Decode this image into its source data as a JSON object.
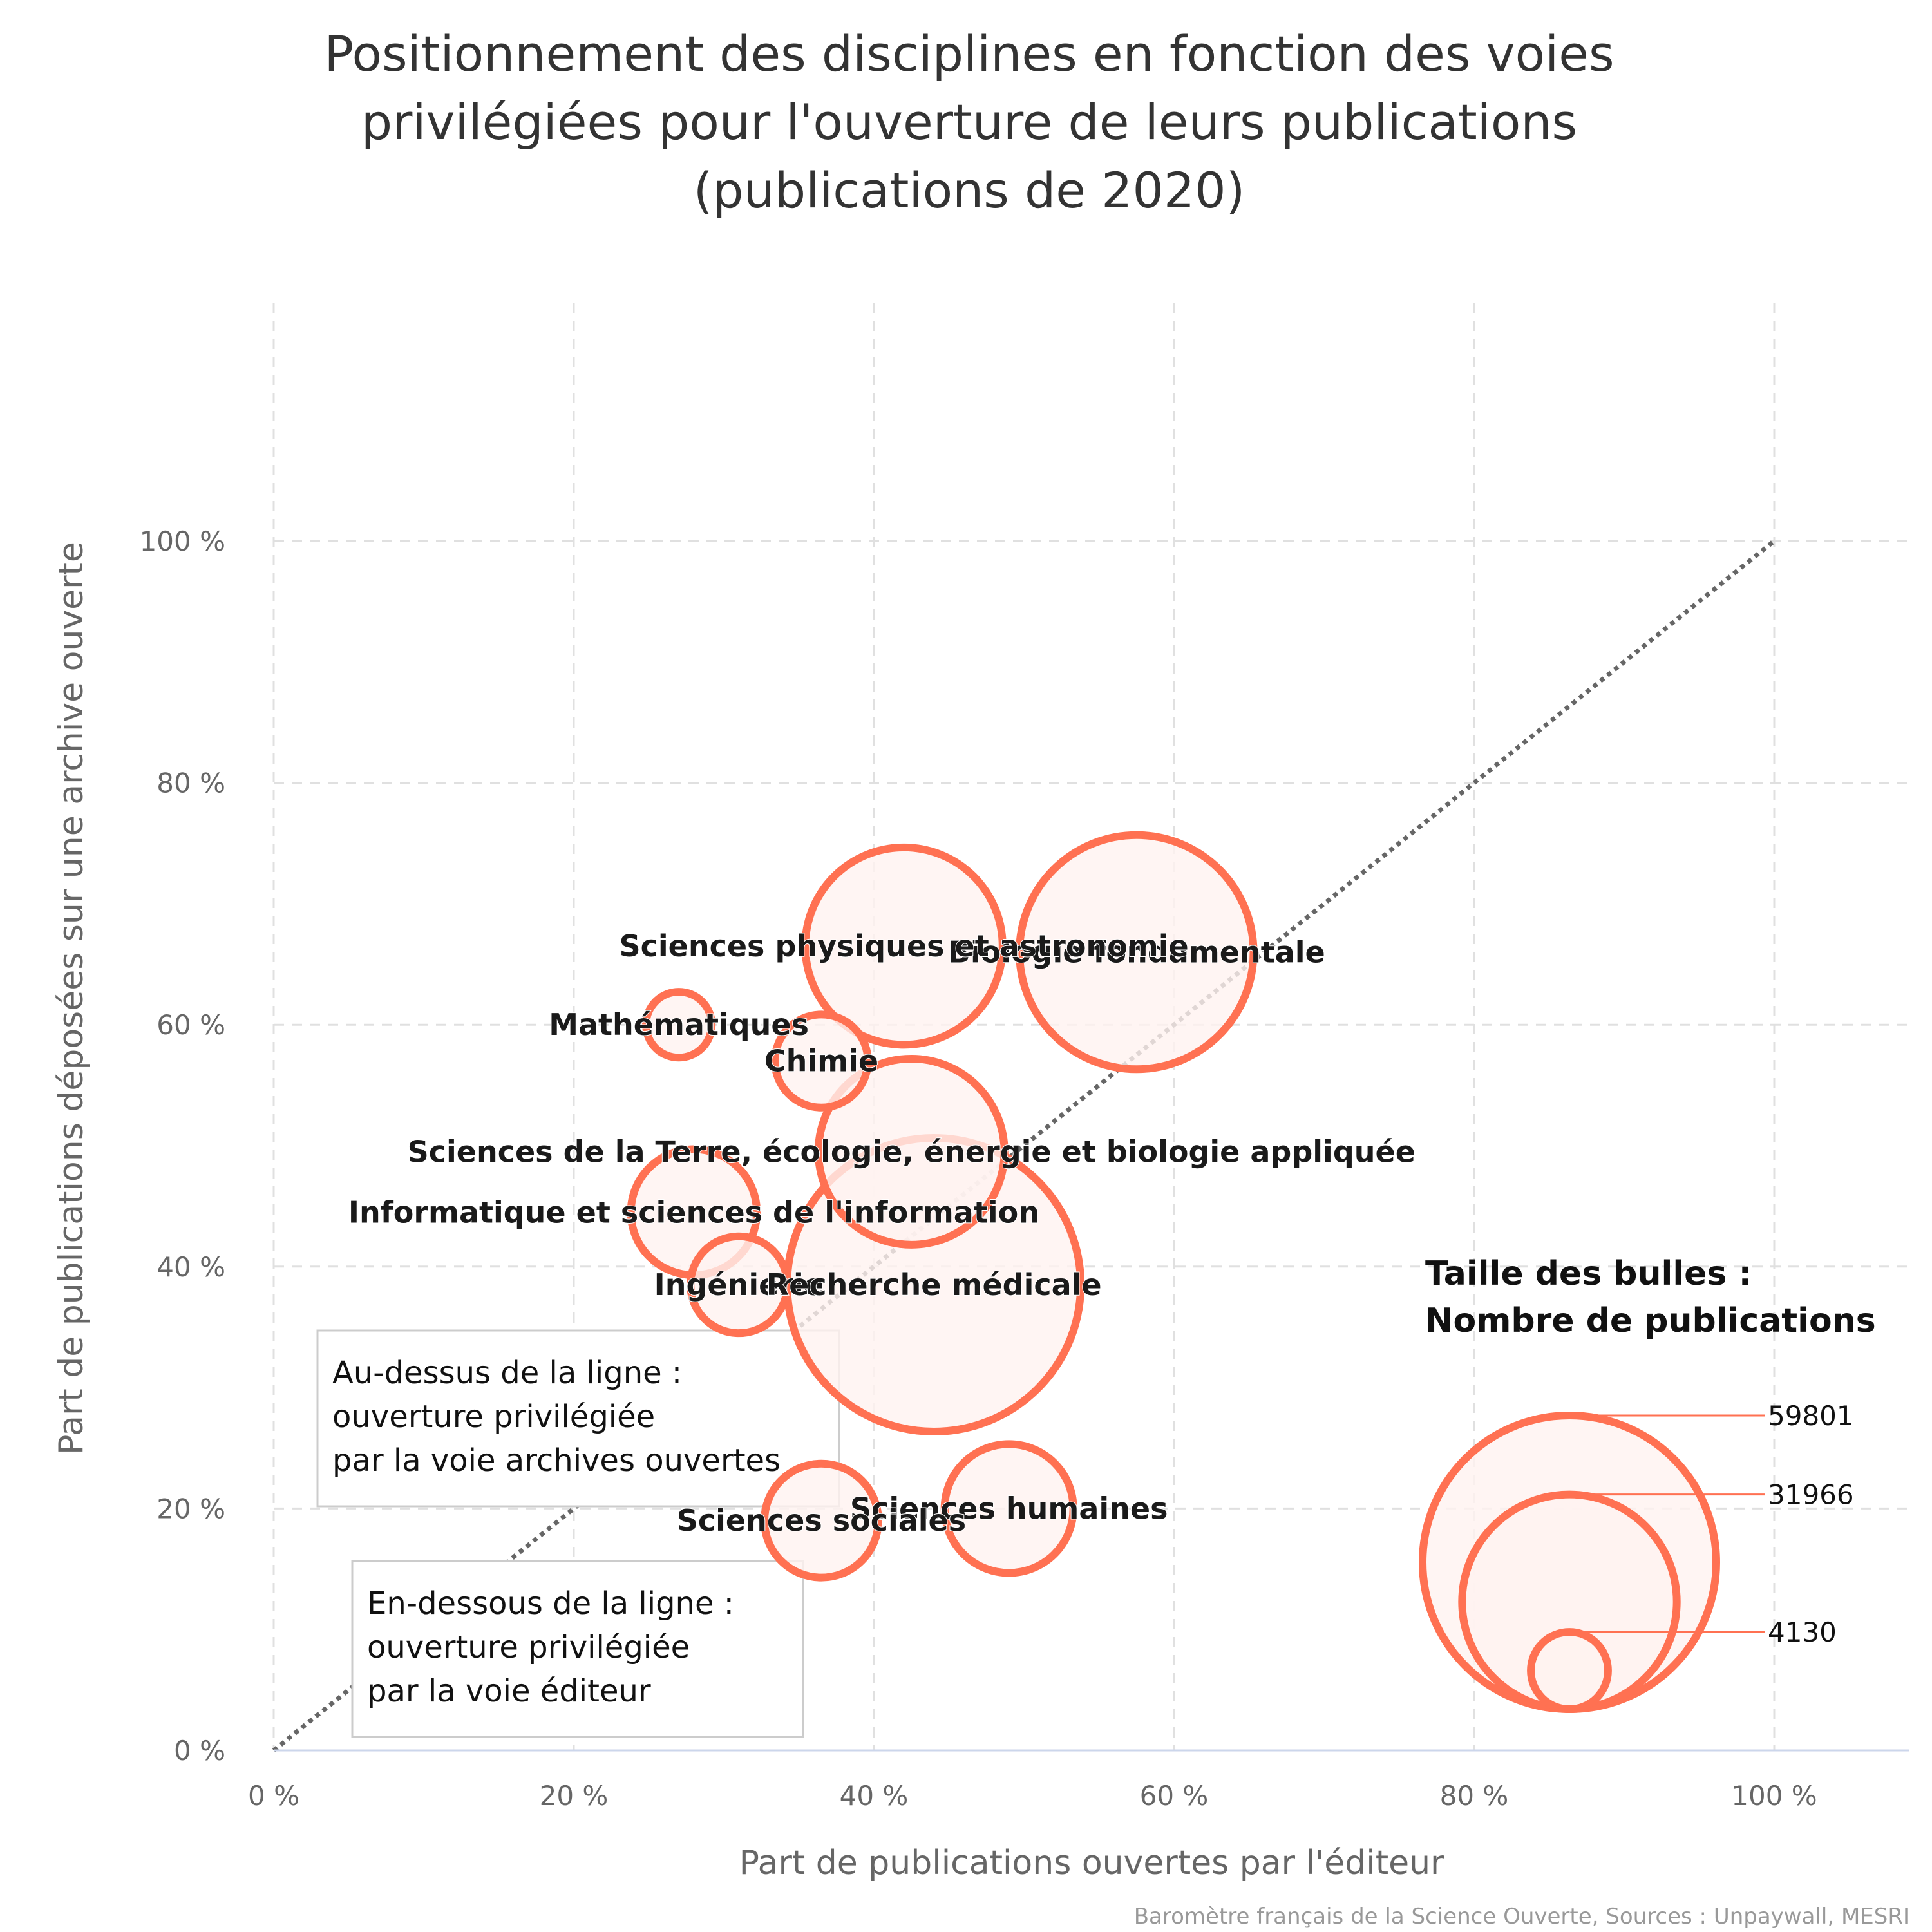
{
  "chart_data": {
    "type": "scatter",
    "title_lines": [
      "Positionnement des disciplines en fonction des voies",
      "privilégiées pour l'ouverture de leurs publications",
      "(publications de 2020)"
    ],
    "xlabel": "Part de publications ouvertes par l'éditeur",
    "ylabel": "Part de publications déposées sur une archive ouverte",
    "xlim": [
      0,
      108
    ],
    "ylim": [
      0,
      100
    ],
    "x_ticks": [
      0,
      20,
      40,
      60,
      80,
      100
    ],
    "y_ticks": [
      0,
      20,
      40,
      60,
      80,
      100
    ],
    "x_tick_labels": [
      "0 %",
      "20 %",
      "40 %",
      "60 %",
      "80 %",
      "100 %"
    ],
    "y_tick_labels": [
      "0 %",
      "20 %",
      "40 %",
      "60 %",
      "80 %",
      "100 %"
    ],
    "grid": true,
    "reference_line": {
      "from": [
        0,
        0
      ],
      "to": [
        100,
        100
      ],
      "style": "dotted"
    },
    "size_variable": "Nombre de publications",
    "series": [
      {
        "points": [
          {
            "label": "Biologie fondamentale",
            "x": 57.5,
            "y": 66,
            "size": 38000
          },
          {
            "label": "Sciences physiques et astronomie",
            "x": 42,
            "y": 66.5,
            "size": 27000
          },
          {
            "label": "Mathématiques",
            "x": 27,
            "y": 60,
            "size": 3000
          },
          {
            "label": "Chimie",
            "x": 36.5,
            "y": 57,
            "size": 6000
          },
          {
            "label": "Sciences de la Terre, écologie, énergie et biologie appliquée",
            "x": 42.5,
            "y": 49.5,
            "size": 24000
          },
          {
            "label": "Informatique et sciences de l'information",
            "x": 28,
            "y": 44.5,
            "size": 11000
          },
          {
            "label": "Ingénierie",
            "x": 31,
            "y": 38.5,
            "size": 6500
          },
          {
            "label": "Recherche médicale",
            "x": 44,
            "y": 38.5,
            "size": 59801
          },
          {
            "label": "Sciences humaines",
            "x": 49,
            "y": 20,
            "size": 11500
          },
          {
            "label": "Sciences sociales",
            "x": 36.5,
            "y": 19,
            "size": 9000
          }
        ]
      }
    ],
    "legend": {
      "title_lines": [
        "Taille des bulles :",
        "Nombre de publications"
      ],
      "values": [
        "59801",
        "31966",
        "4130"
      ],
      "sizes": [
        59801,
        31966,
        4130
      ],
      "position": "bottom-right"
    },
    "annotations": [
      [
        "Au-dessus de la ligne :",
        "ouverture privilégiée",
        "par la voie archives ouvertes"
      ],
      [
        "En-dessous de la ligne :",
        "ouverture privilégiée",
        "par la voie éditeur"
      ]
    ],
    "credits": "Baromètre français de la Science Ouverte, Sources : Unpaywall, MESRI"
  },
  "colors": {
    "bubble_stroke": "#FF7152",
    "bubble_fill": "#FFF3F0",
    "grid": "#e0e0e0",
    "axis_line": "#ccd6eb",
    "reference_line": "#666666"
  }
}
